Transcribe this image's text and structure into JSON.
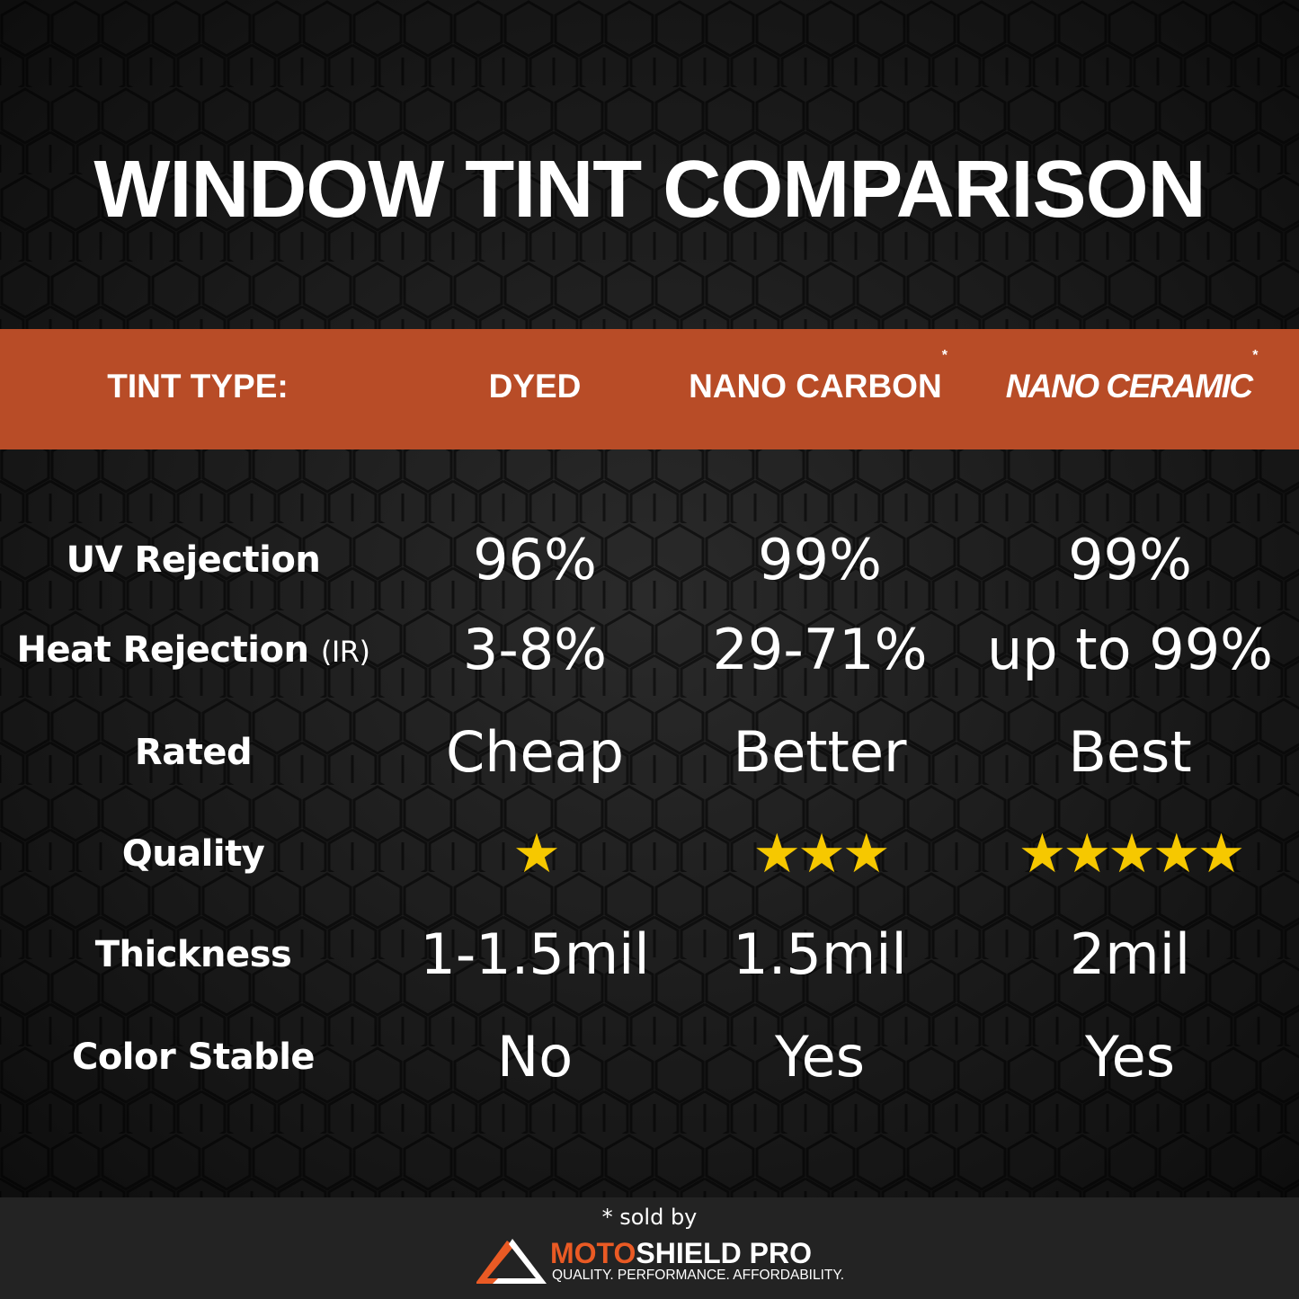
{
  "title": "WINDOW TINT COMPARISON",
  "colors": {
    "band": "#b84c27",
    "star": "#f6c800",
    "brand_orange": "#ea5a24",
    "footer": "#232323"
  },
  "header": {
    "label": "TINT TYPE:",
    "columns": [
      {
        "name": "DYED",
        "asterisk": ""
      },
      {
        "name": "NANO CARBON",
        "asterisk": "*"
      },
      {
        "name": "NANO CERAMIC",
        "asterisk": "*"
      }
    ]
  },
  "rows": [
    {
      "label": "UV Rejection",
      "suffix": "",
      "values": [
        "96%",
        "99%",
        "99%"
      ]
    },
    {
      "label": "Heat Rejection",
      "suffix": "(IR)",
      "values": [
        "3-8%",
        "29-71%",
        "up to 99%"
      ]
    },
    {
      "label": "Rated",
      "suffix": "",
      "values": [
        "Cheap",
        "Better",
        "Best"
      ]
    },
    {
      "label": "Quality",
      "suffix": "",
      "stars": [
        1,
        3,
        5
      ],
      "values": [
        "★",
        "★★★",
        "★★★★★"
      ]
    },
    {
      "label": "Thickness",
      "suffix": "",
      "values": [
        "1-1.5mil",
        "1.5mil",
        "2mil"
      ]
    },
    {
      "label": "Color Stable",
      "suffix": "",
      "values": [
        "No",
        "Yes",
        "Yes"
      ]
    }
  ],
  "footer": {
    "sold_by": "* sold by",
    "brand_part1": "MOTO",
    "brand_part2": "SHIELD PRO",
    "tagline": "QUALITY. PERFORMANCE. AFFORDABILITY."
  }
}
